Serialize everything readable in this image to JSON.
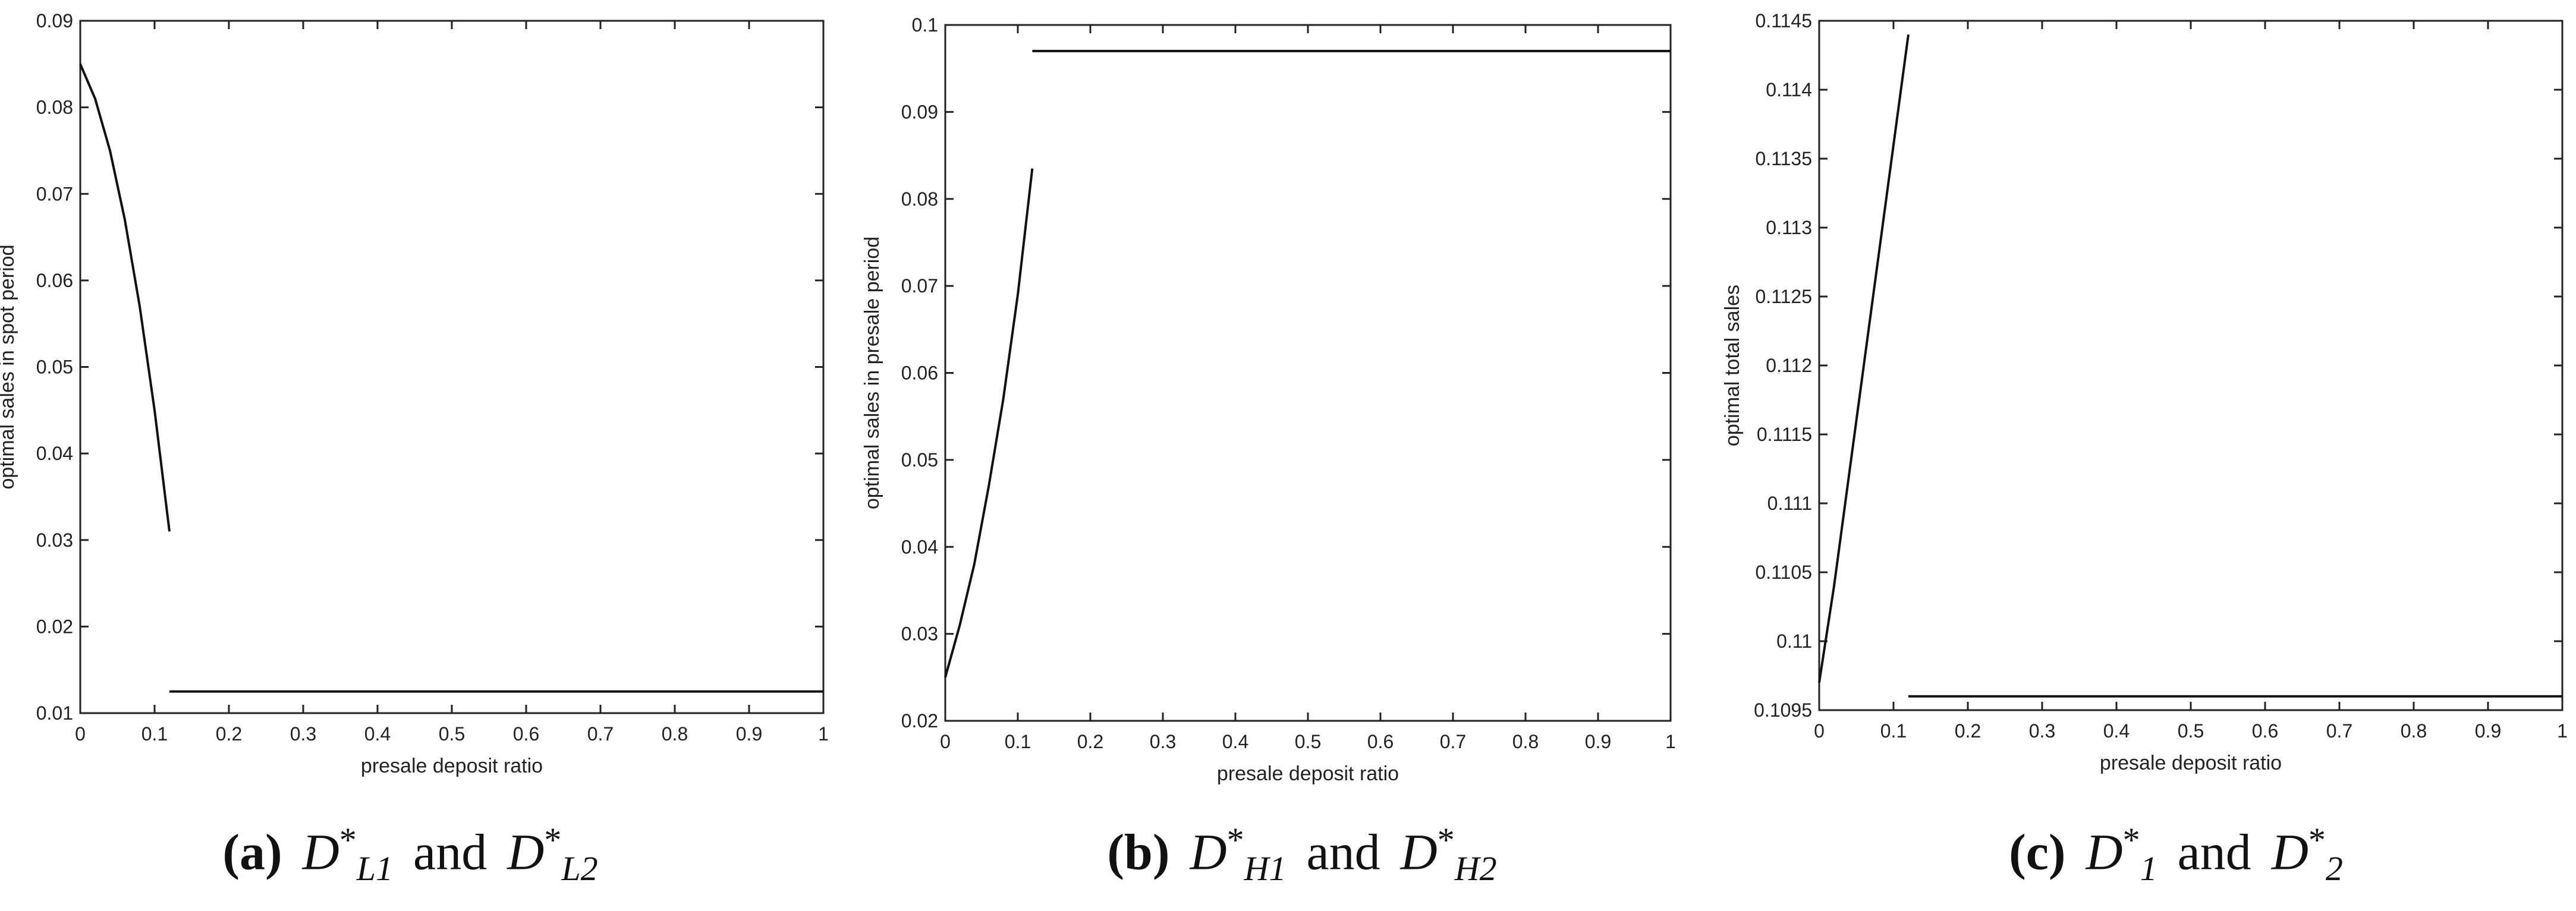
{
  "chart_data": [
    {
      "type": "line",
      "xlabel": "presale deposit ratio",
      "ylabel": "optimal sales in spot period",
      "xlim": [
        0,
        1
      ],
      "ylim": [
        0.01,
        0.09
      ],
      "xticks": [
        "0",
        "0.1",
        "0.2",
        "0.3",
        "0.4",
        "0.5",
        "0.6",
        "0.7",
        "0.8",
        "0.9",
        "1"
      ],
      "yticks": [
        "0.01",
        "0.02",
        "0.03",
        "0.04",
        "0.05",
        "0.06",
        "0.07",
        "0.08",
        "0.09"
      ],
      "grid": false,
      "series": [
        {
          "x": [
            0,
            0.02,
            0.04,
            0.06,
            0.08,
            0.1,
            0.12
          ],
          "y": [
            0.085,
            0.081,
            0.075,
            0.067,
            0.057,
            0.045,
            0.031
          ]
        },
        {
          "x": [
            0.12,
            1
          ],
          "y": [
            0.0125,
            0.0125
          ]
        }
      ],
      "caption": {
        "label": "(a)",
        "first": "D",
        "first_sup": "*",
        "first_sub": "L1",
        "conj": "and",
        "second": "D",
        "second_sup": "*",
        "second_sub": "L2"
      }
    },
    {
      "type": "line",
      "xlabel": "presale deposit ratio",
      "ylabel": "optimal sales in presale period",
      "xlim": [
        0,
        1
      ],
      "ylim": [
        0.02,
        0.1
      ],
      "xticks": [
        "0",
        "0.1",
        "0.2",
        "0.3",
        "0.4",
        "0.5",
        "0.6",
        "0.7",
        "0.8",
        "0.9",
        "1"
      ],
      "yticks": [
        "0.02",
        "0.03",
        "0.04",
        "0.05",
        "0.06",
        "0.07",
        "0.08",
        "0.09",
        "0.1"
      ],
      "grid": false,
      "series": [
        {
          "x": [
            0,
            0.02,
            0.04,
            0.06,
            0.08,
            0.1,
            0.12
          ],
          "y": [
            0.025,
            0.031,
            0.038,
            0.047,
            0.057,
            0.069,
            0.0835
          ]
        },
        {
          "x": [
            0.12,
            1
          ],
          "y": [
            0.097,
            0.097
          ]
        }
      ],
      "caption": {
        "label": "(b)",
        "first": "D",
        "first_sup": "*",
        "first_sub": "H1",
        "conj": "and",
        "second": "D",
        "second_sup": "*",
        "second_sub": "H2"
      }
    },
    {
      "type": "line",
      "xlabel": "presale deposit ratio",
      "ylabel": "optimal total sales",
      "xlim": [
        0,
        1
      ],
      "ylim": [
        0.1095,
        0.1145
      ],
      "xticks": [
        "0",
        "0.1",
        "0.2",
        "0.3",
        "0.4",
        "0.5",
        "0.6",
        "0.7",
        "0.8",
        "0.9",
        "1"
      ],
      "yticks": [
        "0.1095",
        "0.11",
        "0.1105",
        "0.111",
        "0.1115",
        "0.112",
        "0.1125",
        "0.113",
        "0.1135",
        "0.114",
        "0.1145"
      ],
      "grid": false,
      "series": [
        {
          "x": [
            0,
            0.02,
            0.04,
            0.06,
            0.08,
            0.1,
            0.12
          ],
          "y": [
            0.1097,
            0.1104,
            0.1112,
            0.112,
            0.1128,
            0.1136,
            0.1144
          ]
        },
        {
          "x": [
            0.12,
            1
          ],
          "y": [
            0.1096,
            0.1096
          ]
        }
      ],
      "caption": {
        "label": "(c)",
        "first": "D",
        "first_sup": "*",
        "first_sub": "1",
        "conj": "and",
        "second": "D",
        "second_sup": "*",
        "second_sub": "2"
      }
    }
  ]
}
